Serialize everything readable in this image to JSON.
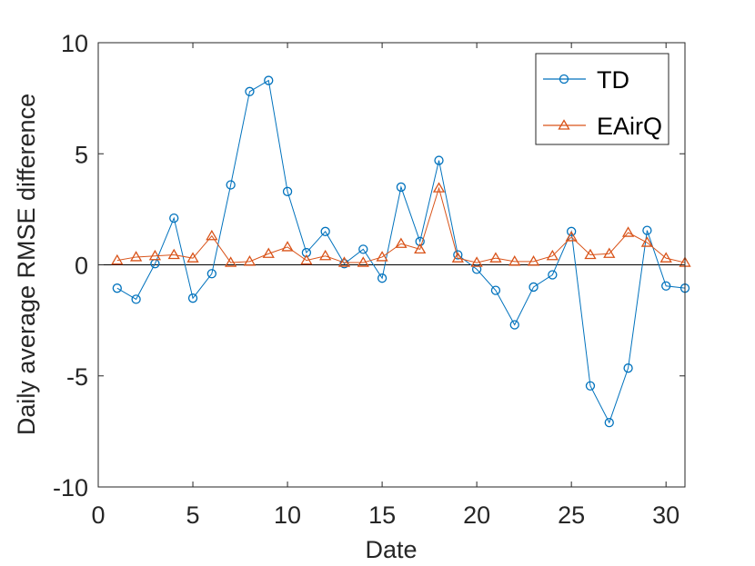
{
  "chart_data": {
    "type": "line",
    "title": "",
    "xlabel": "Date",
    "ylabel": "Daily average RMSE difference",
    "xlim": [
      0,
      31
    ],
    "ylim": [
      -10,
      10
    ],
    "xticks": [
      0,
      5,
      10,
      15,
      20,
      25,
      30
    ],
    "yticks": [
      -10,
      -5,
      0,
      5,
      10
    ],
    "grid": false,
    "legend_position": "top-right",
    "zero_line": true,
    "x": [
      1,
      2,
      3,
      4,
      5,
      6,
      7,
      8,
      9,
      10,
      11,
      12,
      13,
      14,
      15,
      16,
      17,
      18,
      19,
      20,
      21,
      22,
      23,
      24,
      25,
      26,
      27,
      28,
      29,
      30,
      31
    ],
    "series": [
      {
        "name": "TD",
        "color": "#0072BD",
        "marker": "circle",
        "values": [
          -1.05,
          -1.55,
          0.05,
          2.1,
          -1.5,
          -0.4,
          3.6,
          7.8,
          8.3,
          3.3,
          0.55,
          1.5,
          0.05,
          0.7,
          -0.6,
          3.5,
          1.05,
          4.7,
          0.45,
          -0.2,
          -1.15,
          -2.7,
          -1.0,
          -0.45,
          1.5,
          -5.45,
          -7.1,
          -4.65,
          1.55,
          -0.95,
          -1.05
        ]
      },
      {
        "name": "EAirQ",
        "color": "#D95319",
        "marker": "triangle",
        "values": [
          0.2,
          0.35,
          0.4,
          0.45,
          0.3,
          1.3,
          0.1,
          0.15,
          0.5,
          0.8,
          0.2,
          0.4,
          0.1,
          0.1,
          0.35,
          0.95,
          0.7,
          3.45,
          0.3,
          0.1,
          0.3,
          0.15,
          0.15,
          0.4,
          1.25,
          0.45,
          0.5,
          1.45,
          1.0,
          0.3,
          0.1
        ]
      }
    ]
  }
}
